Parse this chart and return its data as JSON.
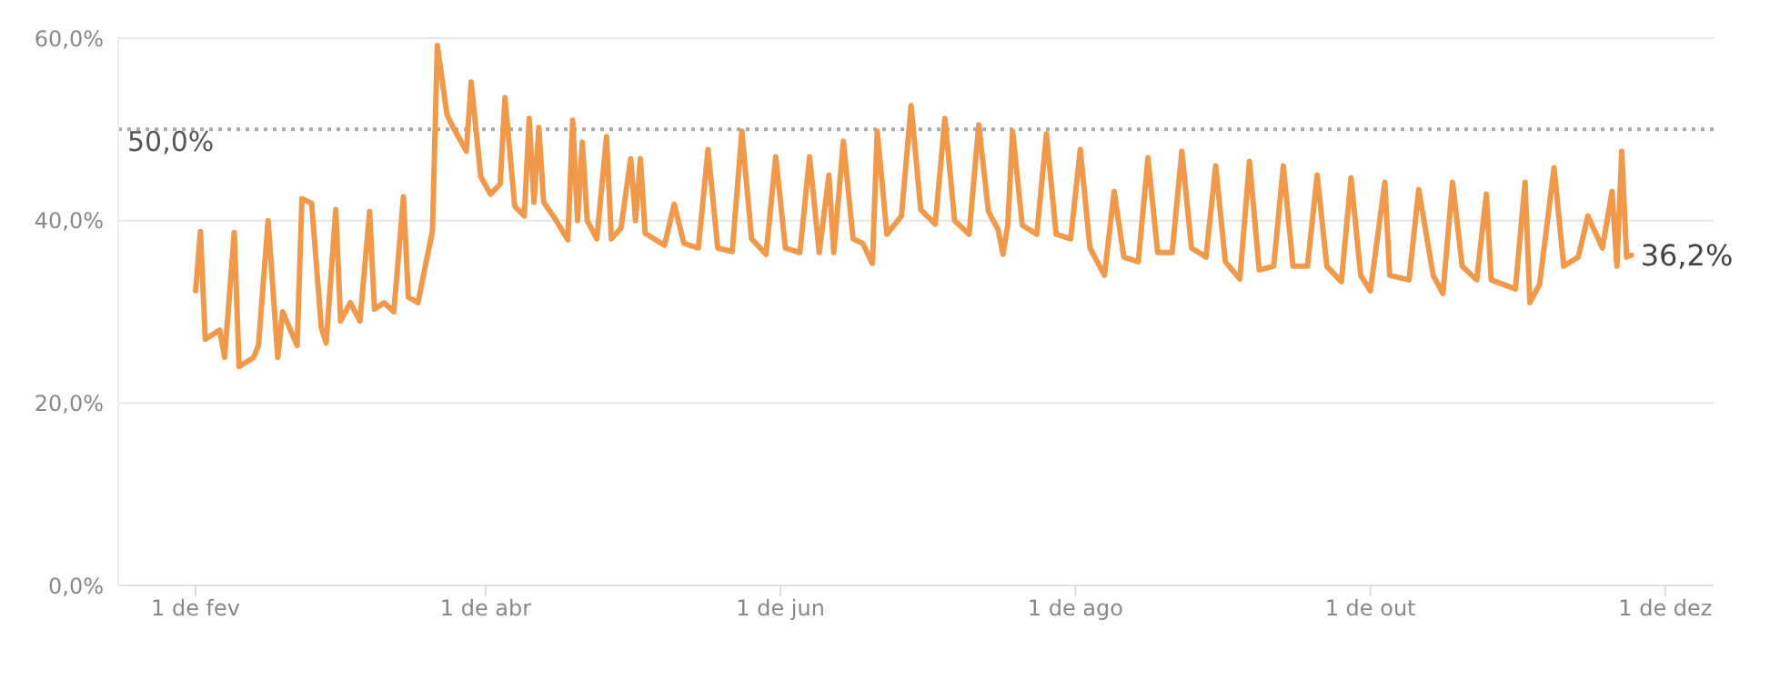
{
  "chart_data": {
    "type": "line",
    "x": [
      "--02-01",
      "--02-02",
      "--02-03",
      "--02-06",
      "--02-07",
      "--02-09",
      "--02-10",
      "--02-13",
      "--02-14",
      "--02-16",
      "--02-18",
      "--02-19",
      "--02-22",
      "--02-23",
      "--02-25",
      "--02-27",
      "--02-28",
      "--03-01",
      "--03-02",
      "--03-04",
      "--03-06",
      "--03-08",
      "--03-09",
      "--03-11",
      "--03-13",
      "--03-15",
      "--03-16",
      "--03-18",
      "--03-21",
      "--03-22",
      "--03-24",
      "--03-25",
      "--03-28",
      "--03-29",
      "--03-31",
      "--04-02",
      "--04-04",
      "--04-05",
      "--04-07",
      "--04-09",
      "--04-10",
      "--04-11",
      "--04-12",
      "--04-13",
      "--04-15",
      "--04-18",
      "--04-19",
      "--04-20",
      "--04-21",
      "--04-22",
      "--04-24",
      "--04-26",
      "--04-27",
      "--04-29",
      "--05-01",
      "--05-02",
      "--05-03",
      "--05-04",
      "--05-08",
      "--05-10",
      "--05-12",
      "--05-15",
      "--05-17",
      "--05-19",
      "--05-22",
      "--05-24",
      "--05-26",
      "--05-29",
      "--05-31",
      "--06-02",
      "--06-05",
      "--06-07",
      "--06-09",
      "--06-11",
      "--06-12",
      "--06-14",
      "--06-16",
      "--06-18",
      "--06-20",
      "--06-21",
      "--06-23",
      "--06-26",
      "--06-28",
      "--06-30",
      "--07-03",
      "--07-05",
      "--07-07",
      "--07-10",
      "--07-12",
      "--07-14",
      "--07-16",
      "--07-17",
      "--07-18",
      "--07-19",
      "--07-21",
      "--07-24",
      "--07-26",
      "--07-28",
      "--07-31",
      "--08-02",
      "--08-04",
      "--08-07",
      "--08-09",
      "--08-11",
      "--08-14",
      "--08-16",
      "--08-18",
      "--08-21",
      "--08-23",
      "--08-25",
      "--08-28",
      "--08-30",
      "--09-01",
      "--09-04",
      "--09-06",
      "--09-08",
      "--09-11",
      "--09-13",
      "--09-15",
      "--09-18",
      "--09-20",
      "--09-22",
      "--09-25",
      "--09-27",
      "--09-29",
      "--10-01",
      "--10-04",
      "--10-05",
      "--10-09",
      "--10-11",
      "--10-14",
      "--10-16",
      "--10-18",
      "--10-20",
      "--10-23",
      "--10-25",
      "--10-26",
      "--10-31",
      "--11-02",
      "--11-03",
      "--11-05",
      "--11-08",
      "--11-10",
      "--11-13",
      "--11-15",
      "--11-18",
      "--11-20",
      "--11-21",
      "--11-22",
      "--11-23",
      "--11-24"
    ],
    "series": [
      {
        "color": "#f0994a",
        "values": [
          32.3,
          38.8,
          27,
          28,
          25,
          38.7,
          24,
          25,
          26.3,
          40,
          25,
          30,
          26.3,
          42.4,
          41.9,
          28.3,
          26.6,
          41.2,
          29,
          31,
          29,
          41,
          30.3,
          31,
          30,
          42.6,
          31.6,
          31,
          38.9,
          59.2,
          51.6,
          50.5,
          47.6,
          55.2,
          44.8,
          42.9,
          44,
          53.5,
          41.6,
          40.5,
          51.2,
          42,
          50.2,
          42,
          40.5,
          37.9,
          51,
          40,
          48.6,
          40,
          38,
          49.2,
          38,
          39.2,
          46.8,
          40,
          46.8,
          38.6,
          37.3,
          41.8,
          37.5,
          37,
          47.8,
          37,
          36.6,
          49.8,
          38,
          36.3,
          47,
          37,
          36.5,
          47,
          36.5,
          45,
          36.5,
          48.7,
          38,
          37.5,
          35.3,
          49.8,
          38.5,
          40.5,
          52.6,
          41.2,
          39.6,
          51.2,
          40,
          38.5,
          50.5,
          41,
          39,
          36.3,
          39.5,
          49.8,
          39.5,
          38.5,
          49.5,
          38.5,
          38,
          47.8,
          37,
          34,
          43.2,
          36,
          35.5,
          46.9,
          36.5,
          36.5,
          47.6,
          37,
          36,
          46,
          35.5,
          33.6,
          46.5,
          34.6,
          35,
          46,
          35,
          35,
          45,
          35,
          33.3,
          44.7,
          34,
          32.3,
          44.2,
          34,
          33.5,
          43.4,
          34,
          32,
          44.2,
          35,
          33.5,
          42.9,
          33.5,
          32.5,
          44.2,
          31,
          33,
          45.8,
          35,
          36,
          40.5,
          37,
          43.2,
          35,
          47.6,
          36,
          36.2
        ]
      }
    ],
    "xlim": [
      "--01-16",
      "--12-11"
    ],
    "xticks": [
      {
        "value": "--02-01",
        "label": "1 de fev"
      },
      {
        "value": "--04-01",
        "label": "1 de abr"
      },
      {
        "value": "--06-01",
        "label": "1 de jun"
      },
      {
        "value": "--08-01",
        "label": "1 de ago"
      },
      {
        "value": "--10-01",
        "label": "1 de out"
      },
      {
        "value": "--12-01",
        "label": "1 de dez"
      }
    ],
    "ylim": [
      0,
      60
    ],
    "yticks": [
      {
        "value": 0,
        "label": "0,0%"
      },
      {
        "value": 20,
        "label": "20,0%"
      },
      {
        "value": 40,
        "label": "40,0%"
      },
      {
        "value": 60,
        "label": "60,0%"
      }
    ],
    "grid": "y",
    "marker": "none",
    "line_style": "solid",
    "ref_lines": [
      {
        "axis": "y",
        "value": 50,
        "label": "50,0%",
        "color": "#aaaaaa",
        "line_style": "dotted"
      }
    ],
    "annotations": [
      {
        "text": "36,2%",
        "x": "--11-24",
        "y": 36.2
      }
    ]
  }
}
